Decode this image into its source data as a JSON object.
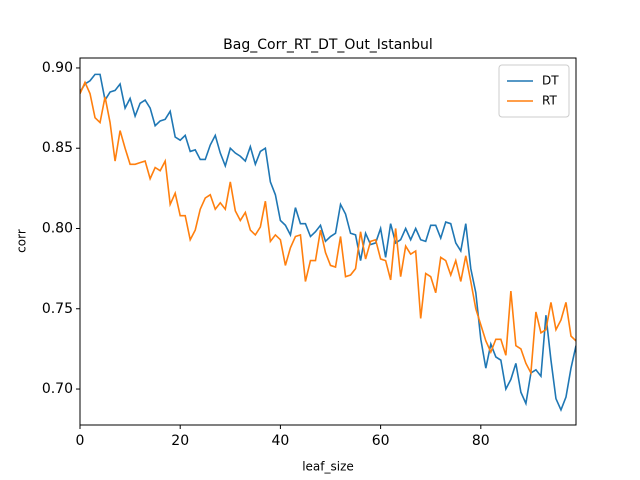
{
  "chart_data": {
    "type": "line",
    "title": "Bag_Corr_RT_DT_Out_Istanbul",
    "x_label": "leaf_size",
    "y_label": "corr",
    "x": [
      0,
      1,
      2,
      3,
      4,
      5,
      6,
      7,
      8,
      9,
      10,
      11,
      12,
      13,
      14,
      15,
      16,
      17,
      18,
      19,
      20,
      21,
      22,
      23,
      24,
      25,
      26,
      27,
      28,
      29,
      30,
      31,
      32,
      33,
      34,
      35,
      36,
      37,
      38,
      39,
      40,
      41,
      42,
      43,
      44,
      45,
      46,
      47,
      48,
      49,
      50,
      51,
      52,
      53,
      54,
      55,
      56,
      57,
      58,
      59,
      60,
      61,
      62,
      63,
      64,
      65,
      66,
      67,
      68,
      69,
      70,
      71,
      72,
      73,
      74,
      75,
      76,
      77,
      78,
      79,
      80,
      81,
      82,
      83,
      84,
      85,
      86,
      87,
      88,
      89,
      90,
      91,
      92,
      93,
      94,
      95,
      96,
      97,
      98,
      99
    ],
    "series": [
      {
        "name": "DT",
        "color": "#1f77b4",
        "values": [
          0.885,
          0.89,
          0.892,
          0.896,
          0.896,
          0.88,
          0.885,
          0.886,
          0.89,
          0.875,
          0.881,
          0.87,
          0.878,
          0.88,
          0.875,
          0.864,
          0.867,
          0.868,
          0.873,
          0.857,
          0.855,
          0.858,
          0.848,
          0.849,
          0.843,
          0.843,
          0.852,
          0.858,
          0.847,
          0.839,
          0.85,
          0.847,
          0.845,
          0.842,
          0.851,
          0.84,
          0.848,
          0.85,
          0.829,
          0.821,
          0.805,
          0.802,
          0.796,
          0.813,
          0.803,
          0.803,
          0.795,
          0.798,
          0.802,
          0.792,
          0.795,
          0.797,
          0.815,
          0.809,
          0.797,
          0.796,
          0.78,
          0.797,
          0.79,
          0.791,
          0.8,
          0.782,
          0.803,
          0.791,
          0.793,
          0.8,
          0.793,
          0.8,
          0.793,
          0.792,
          0.802,
          0.802,
          0.794,
          0.804,
          0.803,
          0.791,
          0.786,
          0.803,
          0.775,
          0.76,
          0.731,
          0.713,
          0.728,
          0.72,
          0.718,
          0.7,
          0.706,
          0.716,
          0.698,
          0.691,
          0.71,
          0.712,
          0.708,
          0.746,
          0.718,
          0.694,
          0.687,
          0.695,
          0.713,
          0.727
        ]
      },
      {
        "name": "RT",
        "color": "#ff7f0e",
        "values": [
          0.884,
          0.891,
          0.884,
          0.869,
          0.866,
          0.882,
          0.866,
          0.842,
          0.861,
          0.85,
          0.84,
          0.84,
          0.841,
          0.842,
          0.831,
          0.838,
          0.836,
          0.842,
          0.815,
          0.822,
          0.808,
          0.808,
          0.793,
          0.799,
          0.812,
          0.819,
          0.821,
          0.812,
          0.816,
          0.812,
          0.829,
          0.811,
          0.805,
          0.81,
          0.799,
          0.796,
          0.801,
          0.817,
          0.792,
          0.796,
          0.793,
          0.777,
          0.788,
          0.795,
          0.796,
          0.767,
          0.78,
          0.78,
          0.799,
          0.785,
          0.777,
          0.776,
          0.795,
          0.77,
          0.771,
          0.775,
          0.798,
          0.781,
          0.792,
          0.793,
          0.781,
          0.78,
          0.768,
          0.8,
          0.77,
          0.789,
          0.784,
          0.786,
          0.744,
          0.772,
          0.77,
          0.76,
          0.782,
          0.78,
          0.771,
          0.78,
          0.767,
          0.783,
          0.767,
          0.75,
          0.74,
          0.73,
          0.723,
          0.731,
          0.731,
          0.721,
          0.761,
          0.727,
          0.725,
          0.716,
          0.71,
          0.748,
          0.735,
          0.737,
          0.754,
          0.737,
          0.743,
          0.754,
          0.733,
          0.73
        ]
      }
    ],
    "xlim": [
      0,
      99
    ],
    "ylim": [
      0.6776,
      0.9062
    ],
    "xticks": [
      0,
      20,
      40,
      60,
      80
    ],
    "yticks": [
      {
        "value": 0.7,
        "label": "0.70"
      },
      {
        "value": 0.75,
        "label": "0.75"
      },
      {
        "value": 0.8,
        "label": "0.80"
      },
      {
        "value": 0.85,
        "label": "0.85"
      },
      {
        "value": 0.9,
        "label": "0.90"
      }
    ],
    "legend": "upper right"
  }
}
